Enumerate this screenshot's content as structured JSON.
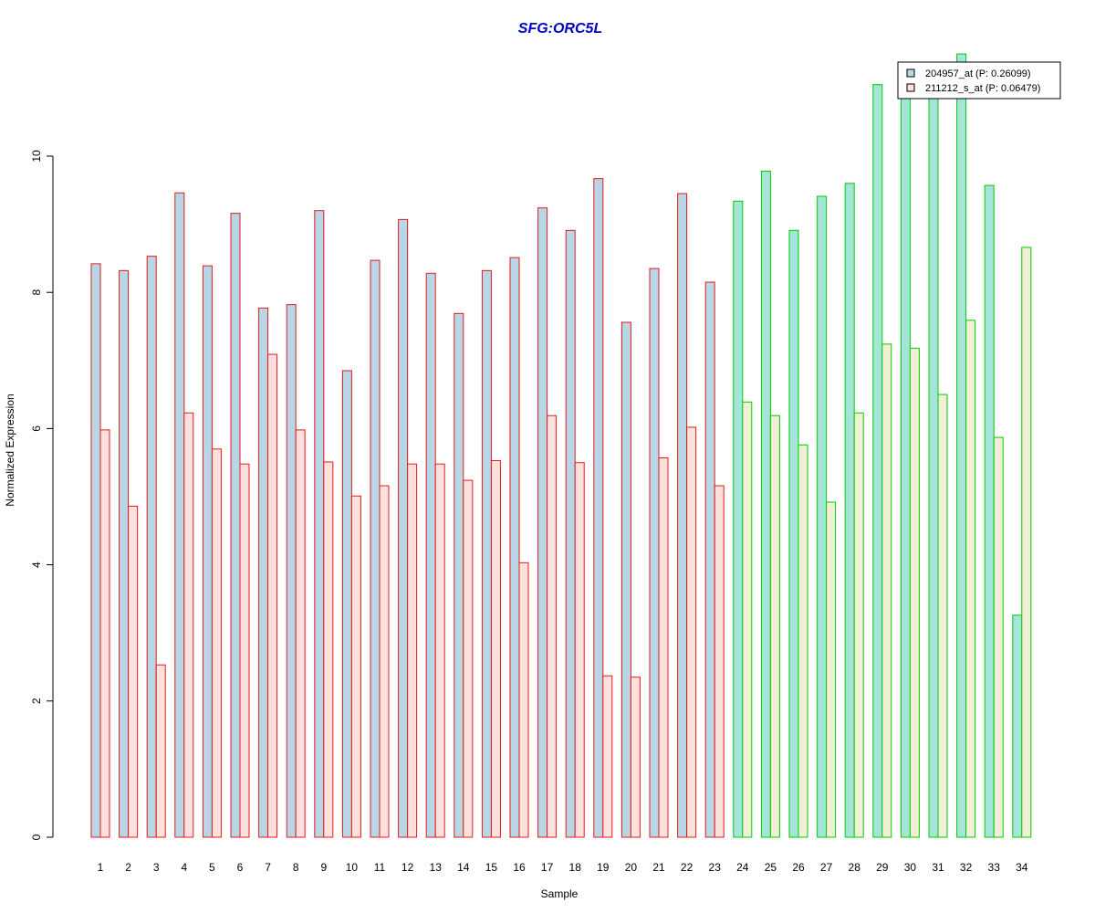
{
  "chart_data": {
    "type": "bar",
    "title": "SFG:ORC5L",
    "xlabel": "Sample",
    "ylabel": "Normalized Expression",
    "ylim": [
      0,
      11.6
    ],
    "yticks": [
      0,
      2,
      4,
      6,
      8,
      10
    ],
    "grid": false,
    "legend_position": "top-right",
    "categories": [
      "1",
      "2",
      "3",
      "4",
      "5",
      "6",
      "7",
      "8",
      "9",
      "10",
      "11",
      "12",
      "13",
      "14",
      "15",
      "16",
      "17",
      "18",
      "19",
      "20",
      "21",
      "22",
      "23",
      "24",
      "25",
      "26",
      "27",
      "28",
      "29",
      "30",
      "31",
      "32",
      "33",
      "34"
    ],
    "groups": [
      {
        "samples": "1-23",
        "border_color": "#e41a1c"
      },
      {
        "samples": "24-34",
        "border_color": "#00cc00"
      }
    ],
    "series": [
      {
        "name": "204957_at (P: 0.26099)",
        "fill_color": "#b7d6e6",
        "fill_color_group2": "#a4e4d9",
        "values": [
          8.42,
          8.32,
          8.53,
          9.46,
          8.39,
          9.16,
          7.77,
          7.82,
          9.2,
          6.85,
          8.47,
          9.07,
          8.28,
          7.69,
          8.32,
          8.51,
          9.24,
          8.91,
          9.67,
          7.56,
          8.35,
          9.45,
          8.15,
          9.34,
          9.78,
          8.91,
          9.41,
          9.6,
          11.05,
          11.2,
          11.3,
          11.5,
          9.57,
          3.26
        ]
      },
      {
        "name": "211212_s_at (P: 0.06479)",
        "fill_color": "#fde1dc",
        "fill_color_group2": "#f2efd6",
        "values": [
          5.98,
          4.86,
          2.53,
          6.23,
          5.7,
          5.48,
          7.09,
          5.98,
          5.51,
          5.01,
          5.16,
          5.48,
          5.48,
          5.24,
          5.53,
          4.03,
          6.19,
          5.5,
          2.37,
          2.35,
          5.57,
          6.02,
          5.16,
          6.39,
          6.19,
          5.76,
          4.92,
          6.23,
          7.24,
          7.18,
          6.5,
          7.59,
          5.87,
          8.66
        ]
      }
    ],
    "colors": {
      "title": "#0000cc",
      "group1_border": "#e41a1c",
      "group2_border": "#00cc00"
    }
  }
}
